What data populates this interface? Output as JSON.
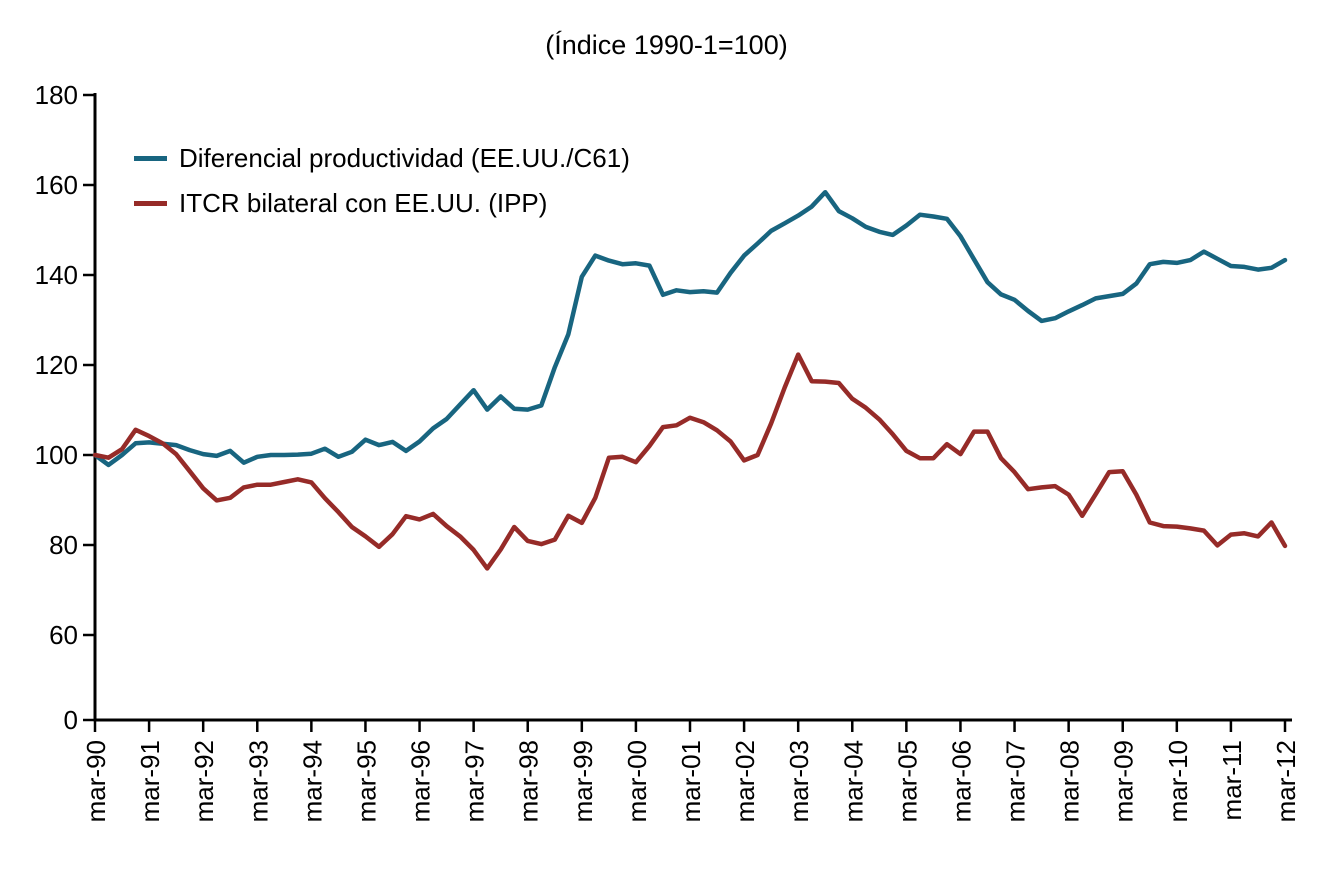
{
  "title": "(Índice 1990-1=100)",
  "chart_data": {
    "type": "line",
    "title": "(Índice 1990-1=100)",
    "x_axis": {
      "unit": "quarterly (mar-90 to mar-12, 89 points)",
      "tick_labels": [
        "mar-90",
        "mar-91",
        "mar-92",
        "mar-93",
        "mar-94",
        "mar-95",
        "mar-96",
        "mar-97",
        "mar-98",
        "mar-99",
        "mar-00",
        "mar-01",
        "mar-02",
        "mar-03",
        "mar-04",
        "mar-05",
        "mar-06",
        "mar-07",
        "mar-08",
        "mar-09",
        "mar-10",
        "mar-11",
        "mar-12"
      ],
      "ticks_per_label": 4
    },
    "y_axis": {
      "tick_labels": [
        180,
        160,
        140,
        120,
        100,
        80,
        60,
        0
      ],
      "note": "scale compressed below 60 (0 drawn one step under 60)",
      "ylim_displayed": [
        60,
        180
      ]
    },
    "grid": false,
    "legend_position": "top-left inside plot",
    "series": [
      {
        "name": "Diferencial productividad (EE.UU./C61)",
        "color": "#186580",
        "values": [
          100,
          97.8,
          100,
          102.6,
          102.8,
          102.5,
          102.2,
          101.1,
          100.2,
          99.8,
          100.9,
          98.3,
          99.6,
          100,
          100,
          100.1,
          100.3,
          101.4,
          99.6,
          100.7,
          103.4,
          102.2,
          102.9,
          100.9,
          103,
          105.9,
          108,
          111.2,
          114.4,
          110.1,
          113,
          110.3,
          110.1,
          111,
          119.5,
          126.8,
          139.6,
          144.3,
          143.2,
          142.4,
          142.6,
          142.1,
          135.6,
          136.6,
          136.2,
          136.4,
          136.1,
          140.5,
          144.3,
          147,
          149.8,
          151.5,
          153.2,
          155.2,
          158.4,
          154.2,
          152.6,
          150.7,
          149.6,
          148.9,
          151,
          153.4,
          153,
          152.5,
          148.6,
          143.5,
          138.4,
          135.7,
          134.5,
          132,
          129.8,
          130.4,
          131.9,
          133.3,
          134.8,
          135.3,
          135.8,
          138.1,
          142.4,
          142.9,
          142.7,
          143.3,
          145.2,
          143.6,
          142,
          141.8,
          141.2,
          141.6,
          143.3
        ]
      },
      {
        "name": "ITCR bilateral con EE.UU. (IPP)",
        "color": "#962b28",
        "values": [
          100,
          99.4,
          101.3,
          105.6,
          104.2,
          102.6,
          100.2,
          96.4,
          92.6,
          89.9,
          90.5,
          92.8,
          93.4,
          93.4,
          94,
          94.6,
          93.9,
          90.4,
          87.3,
          84,
          81.9,
          79.6,
          82.4,
          86.4,
          85.7,
          86.9,
          84.2,
          81.9,
          78.9,
          74.8,
          79,
          84,
          80.9,
          80.2,
          81.2,
          86.5,
          84.9,
          90.5,
          99.4,
          99.6,
          98.4,
          102,
          106.2,
          106.6,
          108.3,
          107.3,
          105.5,
          103,
          98.8,
          100,
          107,
          115,
          122.3,
          116.4,
          116.3,
          116,
          112.5,
          110.5,
          107.9,
          104.6,
          100.9,
          99.3,
          99.3,
          102.4,
          100.2,
          105.2,
          105.2,
          99.3,
          96.2,
          92.4,
          92.8,
          93.1,
          91.2,
          86.5,
          91.3,
          96.2,
          96.4,
          91.2,
          85,
          84.2,
          84.1,
          83.7,
          83.2,
          79.9,
          82.3,
          82.6,
          81.9,
          85,
          79.8
        ]
      }
    ]
  }
}
